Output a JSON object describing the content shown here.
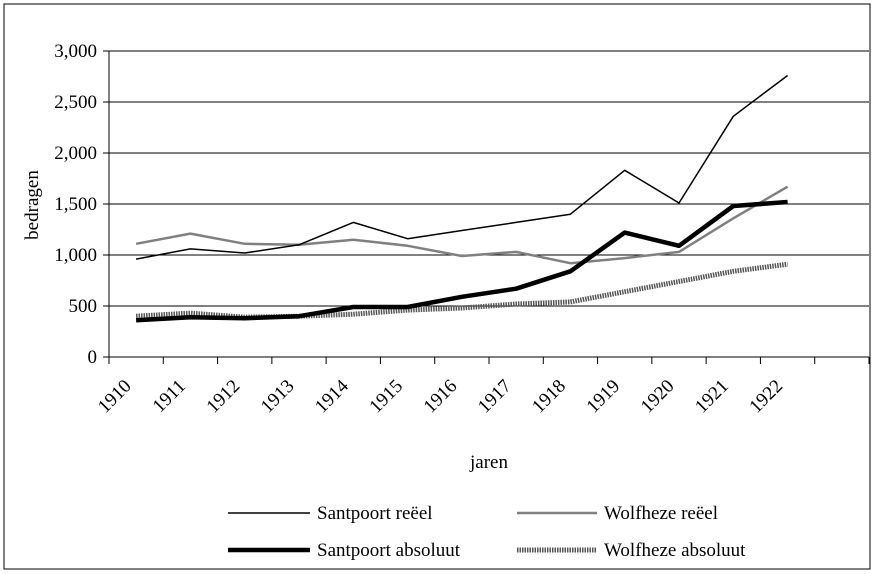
{
  "chart_data": {
    "type": "line",
    "title": "",
    "xlabel": "jaren",
    "ylabel": "bedragen",
    "categories": [
      "1910",
      "1911",
      "1912",
      "1913",
      "1914",
      "1915",
      "1916",
      "1917",
      "1918",
      "1919",
      "1920",
      "1921",
      "1922"
    ],
    "ylim": [
      0,
      3000
    ],
    "yticks": [
      0,
      500,
      1000,
      1500,
      2000,
      2500,
      3000
    ],
    "ytick_labels": [
      "0",
      "500",
      "1,000",
      "1,500",
      "2,000",
      "2,500",
      "3,000"
    ],
    "grid": "horizontal",
    "legend_position": "bottom",
    "series": [
      {
        "name": "Santpoort reëel",
        "color": "#000000",
        "style": "thin",
        "values": [
          960,
          1060,
          1020,
          1100,
          1320,
          1160,
          1240,
          1320,
          1400,
          1830,
          1510,
          2360,
          2760
        ]
      },
      {
        "name": "Wolfheze reëel",
        "color": "#808080",
        "style": "medium",
        "values": [
          1110,
          1210,
          1110,
          1100,
          1150,
          1090,
          990,
          1030,
          920,
          970,
          1030,
          1360,
          1670
        ]
      },
      {
        "name": "Santpoort absoluut",
        "color": "#000000",
        "style": "thick",
        "values": [
          360,
          390,
          380,
          400,
          490,
          490,
          590,
          670,
          840,
          1220,
          1090,
          1480,
          1520
        ]
      },
      {
        "name": "Wolfheze absoluut",
        "color": "#555555",
        "style": "thick-dotted",
        "values": [
          400,
          430,
          390,
          400,
          420,
          460,
          480,
          520,
          540,
          640,
          740,
          840,
          910
        ]
      }
    ]
  }
}
